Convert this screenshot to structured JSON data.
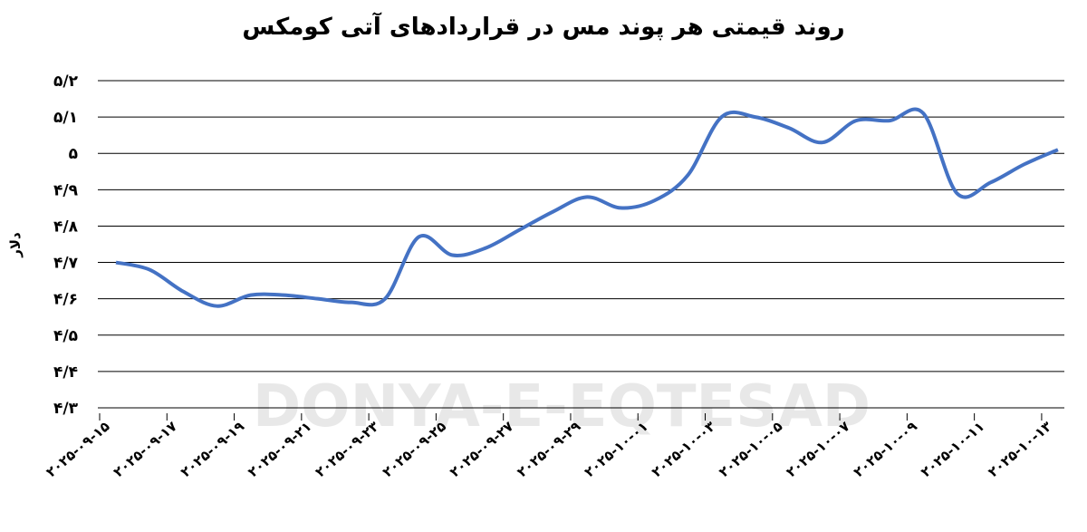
{
  "chart_data": {
    "type": "line",
    "title": "روند قیمتی هر پوند مس در قراردادهای آتی کومکس",
    "y_label": "دلار",
    "watermark": "DONYA-E-EQTESAD",
    "categories": [
      "۲۰۲۵-۰۹-۱۵",
      null,
      "۲۰۲۵-۰۹-۱۷",
      null,
      "۲۰۲۵-۰۹-۱۹",
      null,
      "۲۰۲۵-۰۹-۲۱",
      null,
      "۲۰۲۵-۰۹-۲۳",
      null,
      "۲۰۲۵-۰۹-۲۵",
      null,
      "۲۰۲۵-۰۹-۲۷",
      null,
      "۲۰۲۵-۰۹-۲۹",
      null,
      "۲۰۲۵-۱۰-۰۱",
      null,
      "۲۰۲۵-۱۰-۰۳",
      null,
      "۲۰۲۵-۱۰-۰۵",
      null,
      "۲۰۲۵-۱۰-۰۷",
      null,
      "۲۰۲۵-۱۰-۰۹",
      null,
      "۲۰۲۵-۱۰-۱۱",
      null,
      "۲۰۲۵-۱۰-۱۳"
    ],
    "values": [
      4.7,
      4.68,
      4.62,
      4.58,
      4.61,
      4.61,
      4.6,
      4.59,
      4.6,
      4.77,
      4.72,
      4.74,
      4.79,
      4.84,
      4.88,
      4.85,
      4.87,
      4.94,
      5.1,
      5.1,
      5.07,
      5.03,
      5.09,
      5.09,
      5.11,
      4.89,
      4.92,
      4.97,
      5.01
    ],
    "color": "#4472c4",
    "ylim": [
      4.3,
      5.2
    ],
    "yticks": [
      {
        "value": 4.3,
        "label": "۴/۳"
      },
      {
        "value": 4.4,
        "label": "۴/۴"
      },
      {
        "value": 4.5,
        "label": "۴/۵"
      },
      {
        "value": 4.6,
        "label": "۴/۶"
      },
      {
        "value": 4.7,
        "label": "۴/۷"
      },
      {
        "value": 4.8,
        "label": "۴/۸"
      },
      {
        "value": 4.9,
        "label": "۴/۹"
      },
      {
        "value": 5.0,
        "label": "۵"
      },
      {
        "value": 5.1,
        "label": "۵/۱"
      },
      {
        "value": 5.2,
        "label": "۵/۲"
      }
    ],
    "grid": true
  }
}
